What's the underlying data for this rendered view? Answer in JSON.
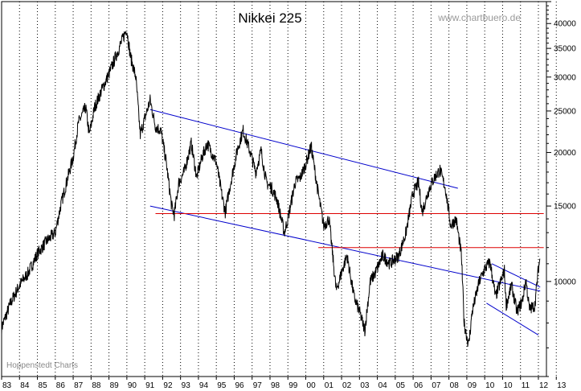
{
  "chart_data": {
    "type": "line",
    "title": "Nikkei 225",
    "watermark": "www.chartbuero.de",
    "source": "Hoppenstedt Charts",
    "y_scale": "log",
    "ylim": [
      6000,
      45000
    ],
    "y_ticks": [
      10000,
      15000,
      20000,
      25000,
      30000,
      35000,
      40000
    ],
    "y_tick_labels": [
      "10000",
      "15000",
      "20000",
      "25000",
      "30000",
      "35000",
      "40000"
    ],
    "x_ticks": [
      "83",
      "84",
      "85",
      "86",
      "87",
      "88",
      "89",
      "90",
      "91",
      "92",
      "93",
      "94",
      "95",
      "96",
      "97",
      "98",
      "99",
      "00",
      "01",
      "02",
      "03",
      "04",
      "05",
      "06",
      "07",
      "08",
      "09",
      "10",
      "10",
      "11",
      "12",
      "13"
    ],
    "grid": true,
    "series": [
      {
        "color": "#000000",
        "points": [
          [
            1983.0,
            7800
          ],
          [
            1983.5,
            8900
          ],
          [
            1984.0,
            9800
          ],
          [
            1984.5,
            10500
          ],
          [
            1985.0,
            11600
          ],
          [
            1985.5,
            12400
          ],
          [
            1986.0,
            13000
          ],
          [
            1986.3,
            15000
          ],
          [
            1986.7,
            17500
          ],
          [
            1987.0,
            19500
          ],
          [
            1987.3,
            23500
          ],
          [
            1987.7,
            25500
          ],
          [
            1987.9,
            22000
          ],
          [
            1988.2,
            25500
          ],
          [
            1988.6,
            28000
          ],
          [
            1989.0,
            30500
          ],
          [
            1989.5,
            34500
          ],
          [
            1989.99,
            38900
          ],
          [
            1990.2,
            33500
          ],
          [
            1990.5,
            30000
          ],
          [
            1990.75,
            22000
          ],
          [
            1991.0,
            24000
          ],
          [
            1991.3,
            26500
          ],
          [
            1991.6,
            23000
          ],
          [
            1991.9,
            22500
          ],
          [
            1992.2,
            19000
          ],
          [
            1992.5,
            15000
          ],
          [
            1992.65,
            14300
          ],
          [
            1992.9,
            17000
          ],
          [
            1993.2,
            18000
          ],
          [
            1993.6,
            21000
          ],
          [
            1993.9,
            17500
          ],
          [
            1994.2,
            19500
          ],
          [
            1994.5,
            21000
          ],
          [
            1995.0,
            19000
          ],
          [
            1995.3,
            16000
          ],
          [
            1995.5,
            14500
          ],
          [
            1995.8,
            17000
          ],
          [
            1996.2,
            20500
          ],
          [
            1996.5,
            22500
          ],
          [
            1996.9,
            20000
          ],
          [
            1997.2,
            18000
          ],
          [
            1997.5,
            20200
          ],
          [
            1997.8,
            17000
          ],
          [
            1998.1,
            16500
          ],
          [
            1998.4,
            15500
          ],
          [
            1998.8,
            13000
          ],
          [
            1999.0,
            14000
          ],
          [
            1999.4,
            17000
          ],
          [
            1999.7,
            17500
          ],
          [
            2000.0,
            18800
          ],
          [
            2000.3,
            20700
          ],
          [
            2000.7,
            16000
          ],
          [
            2001.0,
            13500
          ],
          [
            2001.3,
            14000
          ],
          [
            2001.7,
            9500
          ],
          [
            2002.0,
            10500
          ],
          [
            2002.3,
            11500
          ],
          [
            2002.7,
            9200
          ],
          [
            2003.0,
            8500
          ],
          [
            2003.3,
            7700
          ],
          [
            2003.6,
            10000
          ],
          [
            2003.9,
            10500
          ],
          [
            2004.3,
            11500
          ],
          [
            2004.7,
            11000
          ],
          [
            2005.2,
            11500
          ],
          [
            2005.6,
            13000
          ],
          [
            2005.99,
            16100
          ],
          [
            2006.3,
            17000
          ],
          [
            2006.5,
            14500
          ],
          [
            2006.9,
            16500
          ],
          [
            2007.2,
            17500
          ],
          [
            2007.5,
            18200
          ],
          [
            2007.8,
            16500
          ],
          [
            2008.1,
            13500
          ],
          [
            2008.4,
            14000
          ],
          [
            2008.7,
            11500
          ],
          [
            2008.85,
            8000
          ],
          [
            2009.1,
            7100
          ],
          [
            2009.3,
            8500
          ],
          [
            2009.7,
            10000
          ],
          [
            2010.0,
            10700
          ],
          [
            2010.3,
            11100
          ],
          [
            2010.6,
            9200
          ],
          [
            2010.9,
            10000
          ],
          [
            2011.1,
            10600
          ],
          [
            2011.2,
            8800
          ],
          [
            2011.5,
            9800
          ],
          [
            2011.8,
            8500
          ],
          [
            2012.1,
            9000
          ],
          [
            2012.3,
            10100
          ],
          [
            2012.5,
            8600
          ],
          [
            2012.8,
            8800
          ],
          [
            2013.0,
            10700
          ],
          [
            2013.08,
            11300
          ]
        ]
      }
    ],
    "trend_lines": [
      {
        "color": "#0000cc",
        "from": [
          1991.3,
          25200
        ],
        "to": [
          2008.5,
          16500
        ]
      },
      {
        "color": "#0000cc",
        "from": [
          1991.3,
          15000
        ],
        "to": [
          2013.1,
          9500
        ]
      },
      {
        "color": "#0000cc",
        "from": [
          2010.4,
          11000
        ],
        "to": [
          2013.1,
          9700
        ]
      },
      {
        "color": "#0000cc",
        "from": [
          2010.1,
          8900
        ],
        "to": [
          2013.0,
          7500
        ]
      },
      {
        "color": "#dd0000",
        "from": [
          1991.6,
          14400
        ],
        "to": [
          2013.3,
          14400
        ]
      },
      {
        "color": "#dd0000",
        "from": [
          2000.7,
          12000
        ],
        "to": [
          2013.3,
          12000
        ]
      }
    ]
  }
}
